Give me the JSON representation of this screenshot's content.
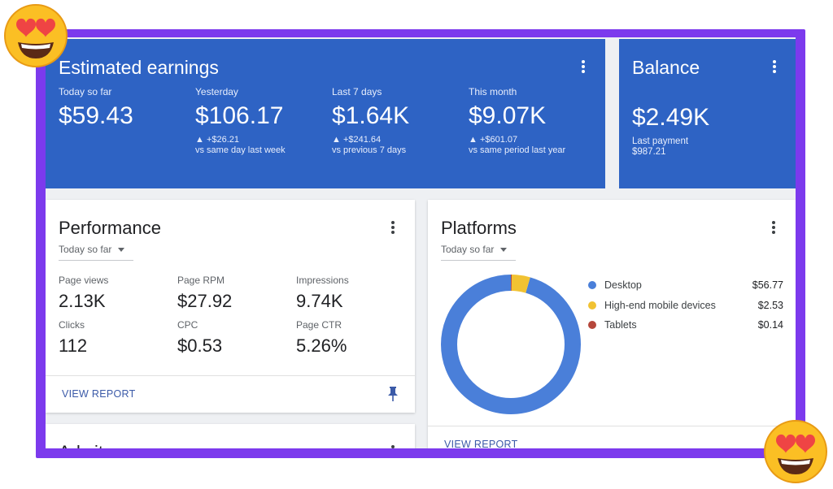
{
  "earnings": {
    "title": "Estimated earnings",
    "stats": [
      {
        "label": "Today so far",
        "value": "$59.43",
        "change": "",
        "compare": ""
      },
      {
        "label": "Yesterday",
        "value": "$106.17",
        "change": "▲ +$26.21",
        "compare": "vs same day last week"
      },
      {
        "label": "Last 7 days",
        "value": "$1.64K",
        "change": "▲ +$241.64",
        "compare": "vs previous 7 days"
      },
      {
        "label": "This month",
        "value": "$9.07K",
        "change": "▲ +$601.07",
        "compare": "vs same period last year"
      }
    ]
  },
  "balance": {
    "title": "Balance",
    "value": "$2.49K",
    "last_payment_label": "Last payment",
    "last_payment_value": "$987.21"
  },
  "performance": {
    "title": "Performance",
    "range": "Today so far",
    "metrics": [
      {
        "label": "Page views",
        "value": "2.13K"
      },
      {
        "label": "Page RPM",
        "value": "$27.92"
      },
      {
        "label": "Impressions",
        "value": "9.74K"
      },
      {
        "label": "Clicks",
        "value": "112"
      },
      {
        "label": "CPC",
        "value": "$0.53"
      },
      {
        "label": "Page CTR",
        "value": "5.26%"
      }
    ],
    "view_report": "VIEW REPORT"
  },
  "platforms": {
    "title": "Platforms",
    "range": "Today so far",
    "legend": [
      {
        "label": "Desktop",
        "amount": "$56.77",
        "value": 56.77,
        "color": "#4a7fd9"
      },
      {
        "label": "High-end mobile devices",
        "amount": "$2.53",
        "value": 2.53,
        "color": "#f1c232"
      },
      {
        "label": "Tablets",
        "amount": "$0.14",
        "value": 0.14,
        "color": "#b5473b"
      }
    ],
    "view_report": "VIEW REPORT"
  },
  "adsites": {
    "title": "Ad sites"
  },
  "colors": {
    "accent": "#2e63c4",
    "frame": "#7c3aed"
  }
}
